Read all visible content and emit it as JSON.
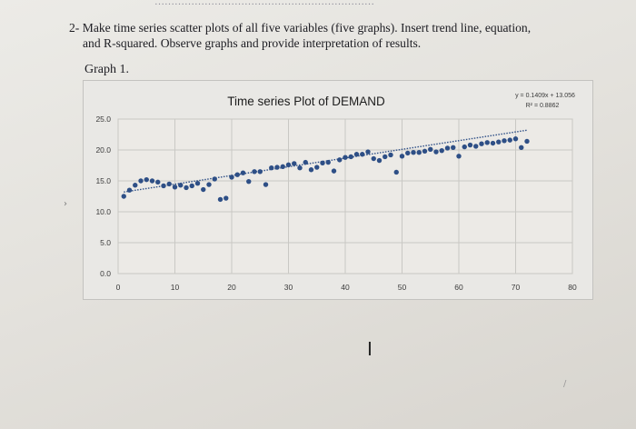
{
  "question": {
    "number": "2-",
    "line1": "Make time series scatter plots of all five variables (five graphs). Insert trend line, equation,",
    "line2": "and R-squared. Observe graphs and provide interpretation of results."
  },
  "graph_label": "Graph 1.",
  "chart_data": {
    "type": "scatter",
    "title": "Time series Plot of DEMAND",
    "xlabel": "",
    "ylabel": "",
    "xlim": [
      0,
      80
    ],
    "ylim": [
      0,
      25
    ],
    "x_ticks": [
      "0",
      "10",
      "20",
      "30",
      "40",
      "50",
      "60",
      "70",
      "80"
    ],
    "y_ticks": [
      "0.0",
      "5.0",
      "10.0",
      "15.0",
      "20.0",
      "25.0"
    ],
    "grid": true,
    "marker_color": "#2e4f86",
    "trendline": {
      "type": "linear",
      "slope": 0.1409,
      "intercept": 13.056,
      "style": "dotted",
      "color": "#2e4f86"
    },
    "equation_text": "y = 0.1409x + 13.056",
    "r2_text": "R² = 0.8862",
    "series": [
      {
        "x": [
          1,
          2,
          3,
          4,
          5,
          6,
          7,
          8,
          9,
          10,
          11,
          12,
          13,
          14,
          15,
          16,
          17,
          18,
          19,
          20,
          21,
          22,
          23,
          24,
          25,
          26,
          27,
          28,
          29,
          30,
          31,
          32,
          33,
          34,
          35,
          36,
          37,
          38,
          39,
          40,
          41,
          42,
          43,
          44,
          45,
          46,
          47,
          48,
          49,
          50,
          51,
          52,
          53,
          54,
          55,
          56,
          57,
          58,
          59,
          60,
          61,
          62,
          63,
          64,
          65,
          66,
          67,
          68,
          69,
          70,
          71,
          72
        ],
        "y": [
          12.5,
          13.5,
          14.3,
          15.0,
          15.2,
          15.0,
          14.8,
          14.2,
          14.5,
          14.0,
          14.3,
          13.9,
          14.2,
          14.6,
          13.6,
          14.4,
          15.3,
          12.0,
          12.2,
          15.6,
          16.0,
          16.3,
          14.9,
          16.5,
          16.5,
          14.4,
          17.1,
          17.2,
          17.3,
          17.6,
          17.8,
          17.1,
          18.0,
          16.8,
          17.2,
          17.9,
          18.0,
          16.6,
          18.4,
          18.8,
          18.9,
          19.3,
          19.3,
          19.7,
          18.6,
          18.3,
          18.9,
          19.2,
          16.4,
          19.0,
          19.5,
          19.6,
          19.6,
          19.8,
          20.1,
          19.7,
          19.9,
          20.3,
          20.4,
          19.0,
          20.5,
          20.8,
          20.6,
          21.0,
          21.2,
          21.1,
          21.3,
          21.5,
          21.6,
          21.8,
          20.4,
          21.4
        ]
      }
    ]
  },
  "cursor_symbol": "I"
}
